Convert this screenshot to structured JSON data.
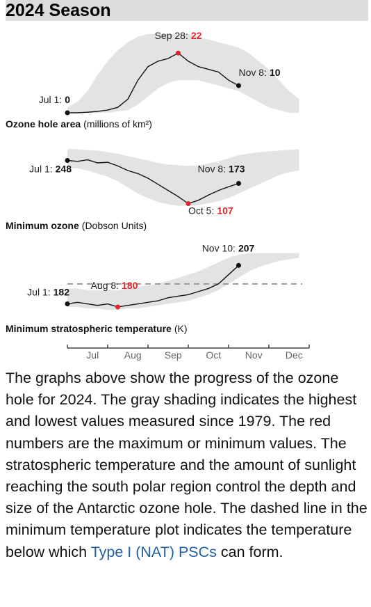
{
  "header": {
    "title": "2024 Season"
  },
  "chart_data": {
    "type": "line",
    "categories": [
      null,
      null,
      "Jul",
      null,
      null,
      null,
      "Aug",
      null,
      null,
      null,
      "Sep",
      null,
      null,
      null,
      "Oct",
      null,
      null,
      null,
      "Nov",
      null,
      null,
      null,
      "Dec",
      null
    ],
    "panels": [
      {
        "title": "Ozone hole area",
        "unit": "(millions of km²)",
        "ylim": [
          0,
          30
        ],
        "color": "#111111",
        "values": [
          0,
          0,
          0.2,
          0.5,
          1,
          2,
          5,
          12,
          17,
          19,
          20,
          22,
          19,
          17,
          16,
          15,
          12,
          10,
          null,
          null,
          null,
          null,
          null,
          null
        ],
        "band": {
          "color": "#e3e3e3",
          "high": [
            2,
            4,
            8,
            14,
            19,
            23,
            26,
            28,
            29,
            29,
            29,
            29,
            29,
            28,
            27,
            26,
            25,
            24,
            22,
            19,
            16,
            12,
            8,
            5
          ],
          "low": [
            0,
            0,
            0,
            0,
            0,
            0.5,
            1,
            3,
            6,
            9,
            11,
            12,
            12,
            12,
            11,
            10,
            9,
            8,
            6,
            4,
            2,
            1,
            0,
            0
          ]
        },
        "annotations": [
          {
            "index": 0,
            "label": "Jul 1:",
            "color": "#111111"
          },
          {
            "index": 11,
            "label": "Sep 28:",
            "color": "#e0262b"
          },
          {
            "index": 17,
            "label": "Nov 8:",
            "color": "#111111"
          }
        ]
      },
      {
        "title": "Minimum ozone",
        "unit": "(Dobson Units)",
        "ylim": [
          90,
          290
        ],
        "color": "#111111",
        "values": [
          248,
          245,
          250,
          240,
          242,
          230,
          215,
          205,
          190,
          170,
          150,
          130,
          107,
          118,
          135,
          150,
          162,
          173,
          null,
          null,
          null,
          null,
          null,
          null
        ],
        "band": {
          "color": "#e3e3e3",
          "high": [
            285,
            285,
            282,
            280,
            275,
            270,
            262,
            255,
            248,
            240,
            235,
            232,
            230,
            232,
            238,
            245,
            255,
            265,
            270,
            275,
            278,
            280,
            282,
            285
          ],
          "low": [
            225,
            222,
            215,
            205,
            195,
            180,
            160,
            140,
            125,
            112,
            105,
            100,
            100,
            102,
            108,
            115,
            125,
            140,
            155,
            170,
            185,
            200,
            210,
            215
          ]
        },
        "annotations": [
          {
            "index": 0,
            "label": "Jul 1:",
            "color": "#111111"
          },
          {
            "index": 12,
            "label": "Oct 5:",
            "color": "#e0262b"
          },
          {
            "index": 17,
            "label": "Nov 8:",
            "color": "#111111"
          }
        ]
      },
      {
        "title": "Minimum stratospheric temperature",
        "unit": "(K)",
        "ylim": [
          175,
          218
        ],
        "color": "#111111",
        "threshold": 195,
        "values": [
          182,
          183,
          182,
          181,
          182,
          180,
          181,
          182,
          183,
          184,
          186,
          187,
          188,
          190,
          192,
          195,
          201,
          207,
          null,
          null,
          null,
          null,
          null,
          null
        ],
        "band": {
          "color": "#e3e3e3",
          "high": [
            192,
            192,
            191,
            191,
            191,
            191,
            192,
            193,
            194,
            195,
            197,
            199,
            201,
            203,
            206,
            209,
            212,
            214,
            215,
            215,
            215,
            215,
            215,
            215
          ],
          "low": [
            180,
            180,
            179,
            179,
            178,
            178,
            179,
            179,
            180,
            181,
            182,
            183,
            184,
            186,
            188,
            191,
            195,
            199,
            203,
            206,
            208,
            210,
            211,
            212
          ]
        },
        "annotations": [
          {
            "index": 0,
            "label": "Jul 1:",
            "color": "#111111"
          },
          {
            "index": 5,
            "label": "Aug 8:",
            "color": "#e0262b"
          },
          {
            "index": 17,
            "label": "Nov 10:",
            "color": "#111111"
          }
        ]
      }
    ]
  },
  "paragraph": {
    "before": "The graphs above show the progress of the ozone hole for 2024. The gray shading indicates the highest and lowest values measured since 1979. The red numbers are the maximum or minimum values. The stratospheric temperature and the amount of sunlight reaching the south polar region control the depth and size of the Antarctic ozone hole. The dashed line in the minimum temperature plot indicates the temperature below which",
    "link": "Type I (NAT) PSCs",
    "after": "can form."
  }
}
